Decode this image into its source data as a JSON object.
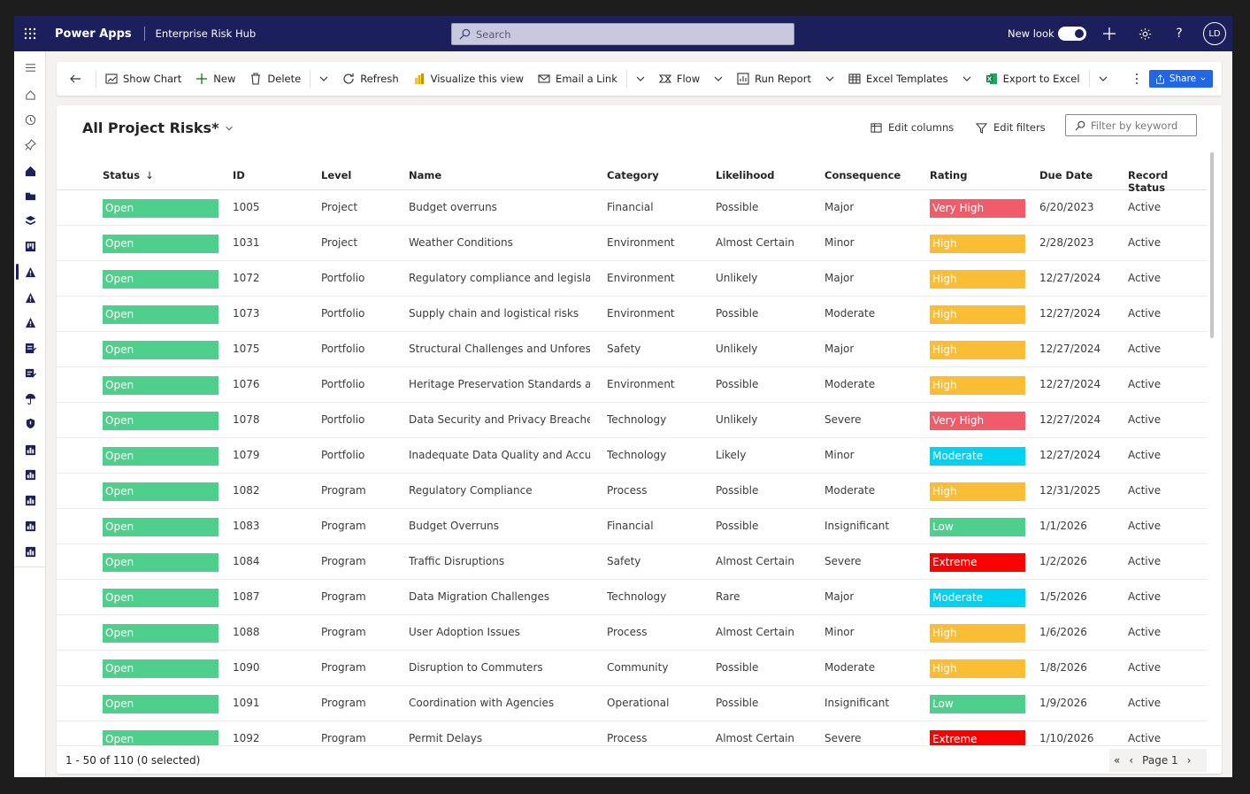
{
  "header": {
    "app_name": "Power Apps",
    "env_name": "Enterprise Risk Hub",
    "search_placeholder": "Search",
    "new_look_label": "New look",
    "avatar_initials": "LD"
  },
  "toolbar": {
    "show_chart": "Show Chart",
    "new": "New",
    "delete": "Delete",
    "refresh": "Refresh",
    "visualize": "Visualize this view",
    "email_link": "Email a Link",
    "flow": "Flow",
    "run_report": "Run Report",
    "excel_templates": "Excel Templates",
    "export_excel": "Export to Excel",
    "share": "Share"
  },
  "view": {
    "title": "All Project Risks*",
    "edit_columns": "Edit columns",
    "edit_filters": "Edit filters",
    "filter_placeholder": "Filter by keyword"
  },
  "columns": {
    "status": "Status",
    "id": "ID",
    "level": "Level",
    "name": "Name",
    "category": "Category",
    "likelihood": "Likelihood",
    "consequence": "Consequence",
    "rating": "Rating",
    "due_date": "Due Date",
    "record_status": "Record Status"
  },
  "rating_colors": {
    "Very High": "#f25b68",
    "High": "#fbbd33",
    "Moderate": "#00d2f2",
    "Low": "#4fcf8c",
    "Extreme": "#ff0000"
  },
  "rows": [
    {
      "status": "Open",
      "id": "1005",
      "level": "Project",
      "name": "Budget overruns",
      "category": "Financial",
      "likelihood": "Possible",
      "consequence": "Major",
      "rating": "Very High",
      "due": "6/20/2023",
      "record": "Active"
    },
    {
      "status": "Open",
      "id": "1031",
      "level": "Project",
      "name": "Weather Conditions",
      "category": "Environment",
      "likelihood": "Almost Certain",
      "consequence": "Minor",
      "rating": "High",
      "due": "2/28/2023",
      "record": "Active"
    },
    {
      "status": "Open",
      "id": "1072",
      "level": "Portfolio",
      "name": "Regulatory compliance and legislati...",
      "category": "Environment",
      "likelihood": "Unlikely",
      "consequence": "Major",
      "rating": "High",
      "due": "12/27/2024",
      "record": "Active"
    },
    {
      "status": "Open",
      "id": "1073",
      "level": "Portfolio",
      "name": "Supply chain and logistical risks",
      "category": "Environment",
      "likelihood": "Possible",
      "consequence": "Moderate",
      "rating": "High",
      "due": "12/27/2024",
      "record": "Active"
    },
    {
      "status": "Open",
      "id": "1075",
      "level": "Portfolio",
      "name": "Structural Challenges and Unforese...",
      "category": "Safety",
      "likelihood": "Unlikely",
      "consequence": "Major",
      "rating": "High",
      "due": "12/27/2024",
      "record": "Active"
    },
    {
      "status": "Open",
      "id": "1076",
      "level": "Portfolio",
      "name": "Heritage Preservation Standards an...",
      "category": "Environment",
      "likelihood": "Possible",
      "consequence": "Moderate",
      "rating": "High",
      "due": "12/27/2024",
      "record": "Active"
    },
    {
      "status": "Open",
      "id": "1078",
      "level": "Portfolio",
      "name": "Data Security and Privacy Breaches",
      "category": "Technology",
      "likelihood": "Unlikely",
      "consequence": "Severe",
      "rating": "Very High",
      "due": "12/27/2024",
      "record": "Active"
    },
    {
      "status": "Open",
      "id": "1079",
      "level": "Portfolio",
      "name": "Inadequate Data Quality and Accura...",
      "category": "Technology",
      "likelihood": "Likely",
      "consequence": "Minor",
      "rating": "Moderate",
      "due": "12/27/2024",
      "record": "Active"
    },
    {
      "status": "Open",
      "id": "1082",
      "level": "Program",
      "name": "Regulatory Compliance",
      "category": "Process",
      "likelihood": "Possible",
      "consequence": "Moderate",
      "rating": "High",
      "due": "12/31/2025",
      "record": "Active"
    },
    {
      "status": "Open",
      "id": "1083",
      "level": "Program",
      "name": "Budget Overruns",
      "category": "Financial",
      "likelihood": "Possible",
      "consequence": "Insignificant",
      "rating": "Low",
      "due": "1/1/2026",
      "record": "Active"
    },
    {
      "status": "Open",
      "id": "1084",
      "level": "Program",
      "name": "Traffic Disruptions",
      "category": "Safety",
      "likelihood": "Almost Certain",
      "consequence": "Severe",
      "rating": "Extreme",
      "due": "1/2/2026",
      "record": "Active"
    },
    {
      "status": "Open",
      "id": "1087",
      "level": "Program",
      "name": "Data Migration Challenges",
      "category": "Technology",
      "likelihood": "Rare",
      "consequence": "Major",
      "rating": "Moderate",
      "due": "1/5/2026",
      "record": "Active"
    },
    {
      "status": "Open",
      "id": "1088",
      "level": "Program",
      "name": "User Adoption Issues",
      "category": "Process",
      "likelihood": "Almost Certain",
      "consequence": "Minor",
      "rating": "High",
      "due": "1/6/2026",
      "record": "Active"
    },
    {
      "status": "Open",
      "id": "1090",
      "level": "Program",
      "name": "Disruption to Commuters",
      "category": "Community",
      "likelihood": "Possible",
      "consequence": "Moderate",
      "rating": "High",
      "due": "1/8/2026",
      "record": "Active"
    },
    {
      "status": "Open",
      "id": "1091",
      "level": "Program",
      "name": "Coordination with Agencies",
      "category": "Operational",
      "likelihood": "Possible",
      "consequence": "Insignificant",
      "rating": "Low",
      "due": "1/9/2026",
      "record": "Active"
    },
    {
      "status": "Open",
      "id": "1092",
      "level": "Program",
      "name": "Permit Delays",
      "category": "Process",
      "likelihood": "Almost Certain",
      "consequence": "Severe",
      "rating": "Extreme",
      "due": "1/10/2026",
      "record": "Active"
    }
  ],
  "footer": {
    "count_text": "1 - 50 of 110 (0 selected)",
    "page_label": "Page 1"
  }
}
